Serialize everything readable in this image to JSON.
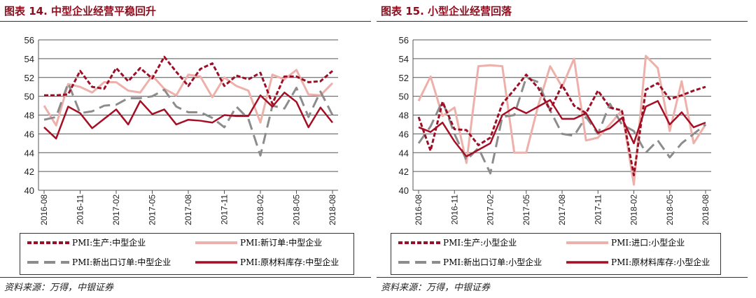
{
  "chart_data": [
    {
      "type": "line",
      "title": "图表 14. 中型企业经营平稳回升",
      "ylim": [
        40,
        56
      ],
      "yticks": [
        40,
        42,
        44,
        46,
        48,
        50,
        52,
        54,
        56
      ],
      "x": [
        "2016-08",
        "2016-09",
        "2016-10",
        "2016-11",
        "2016-12",
        "2017-01",
        "2017-02",
        "2017-03",
        "2017-04",
        "2017-05",
        "2017-06",
        "2017-07",
        "2017-08",
        "2017-09",
        "2017-10",
        "2017-11",
        "2017-12",
        "2018-01",
        "2018-02",
        "2018-03",
        "2018-04",
        "2018-05",
        "2018-06",
        "2018-07",
        "2018-08"
      ],
      "xticks": [
        "2016-08",
        "2016-11",
        "2017-02",
        "2017-05",
        "2017-08",
        "2017-11",
        "2018-02",
        "2018-05",
        "2018-08"
      ],
      "grid": true,
      "series": [
        {
          "name": "PMI:生产:中型企业",
          "style": "dotted",
          "color": "#9b1027",
          "values": [
            50.1,
            50.1,
            50.2,
            52.7,
            51.0,
            50.8,
            53.0,
            51.6,
            53.0,
            51.9,
            54.2,
            52.6,
            51.1,
            52.9,
            53.5,
            51.1,
            52.2,
            51.8,
            52.5,
            49.2,
            52.1,
            52.1,
            51.5,
            51.6,
            52.7
          ]
        },
        {
          "name": "PMI:新订单:中型企业",
          "style": "solid-light",
          "color": "#eeb0aa",
          "values": [
            49.0,
            46.9,
            51.3,
            51.0,
            50.4,
            51.5,
            51.5,
            50.6,
            50.4,
            52.2,
            50.8,
            50.1,
            52.3,
            52.1,
            49.9,
            52.0,
            51.1,
            50.6,
            47.2,
            52.3,
            51.8,
            52.8,
            50.2,
            50.1,
            51.4
          ]
        },
        {
          "name": "PMI:新出口订单:中型企业",
          "style": "dashed",
          "color": "#8c8c8c",
          "values": [
            47.5,
            47.8,
            51.4,
            48.2,
            48.4,
            49.0,
            49.1,
            49.8,
            49.8,
            50.0,
            50.7,
            48.9,
            48.3,
            48.3,
            47.7,
            46.7,
            48.9,
            47.6,
            43.7,
            49.0,
            48.7,
            50.9,
            47.8,
            50.5,
            48.0
          ]
        },
        {
          "name": "PMI:原材料库存:中型企业",
          "style": "solid",
          "color": "#a50e24",
          "values": [
            46.7,
            45.5,
            48.9,
            48.2,
            46.6,
            47.6,
            48.6,
            47.0,
            49.5,
            48.1,
            48.6,
            47.0,
            47.5,
            47.4,
            47.2,
            48.0,
            47.9,
            47.9,
            50.1,
            48.9,
            50.4,
            49.4,
            46.7,
            48.8,
            47.2
          ]
        }
      ],
      "source": "资料来源：万得，中银证券"
    },
    {
      "type": "line",
      "title": "图表 15. 小型企业经营回落",
      "ylim": [
        40,
        56
      ],
      "yticks": [
        40,
        42,
        44,
        46,
        48,
        50,
        52,
        54,
        56
      ],
      "x": [
        "2016-08",
        "2016-09",
        "2016-10",
        "2016-11",
        "2016-12",
        "2017-01",
        "2017-02",
        "2017-03",
        "2017-04",
        "2017-05",
        "2017-06",
        "2017-07",
        "2017-08",
        "2017-09",
        "2017-10",
        "2017-11",
        "2017-12",
        "2018-01",
        "2018-02",
        "2018-03",
        "2018-04",
        "2018-05",
        "2018-06",
        "2018-07",
        "2018-08"
      ],
      "xticks": [
        "2016-08",
        "2016-11",
        "2017-02",
        "2017-05",
        "2017-08",
        "2017-11",
        "2018-02",
        "2018-05",
        "2018-08"
      ],
      "grid": true,
      "series": [
        {
          "name": "PMI:生产:小型企业",
          "style": "dotted",
          "color": "#9b1027",
          "values": [
            47.8,
            44.2,
            49.4,
            46.5,
            46.4,
            44.8,
            45.6,
            49.2,
            50.7,
            52.3,
            50.9,
            48.5,
            51.2,
            49.0,
            48.2,
            50.6,
            48.8,
            48.5,
            41.6,
            50.7,
            51.4,
            49.7,
            50.1,
            50.6,
            51.0
          ]
        },
        {
          "name": "PMI:进口:小型企业",
          "style": "solid-light",
          "color": "#eeb0aa",
          "values": [
            49.5,
            52.1,
            47.9,
            48.8,
            42.9,
            53.2,
            53.3,
            53.2,
            44.0,
            44.0,
            49.0,
            53.2,
            51.0,
            54.0,
            45.3,
            45.6,
            47.0,
            48.5,
            40.6,
            54.3,
            53.0,
            46.3,
            51.6,
            45.0,
            47.0
          ]
        },
        {
          "name": "PMI:新出口订单:小型企业",
          "style": "dashed",
          "color": "#8c8c8c",
          "values": [
            45.0,
            46.8,
            49.5,
            46.0,
            43.2,
            44.5,
            41.8,
            47.8,
            48.0,
            52.0,
            51.5,
            48.5,
            46.0,
            45.8,
            47.8,
            46.0,
            49.2,
            47.0,
            46.3,
            44.0,
            45.3,
            43.5,
            45.0,
            46.0,
            47.0
          ]
        },
        {
          "name": "PMI:原材料库存:小型企业",
          "style": "solid",
          "color": "#a50e24",
          "values": [
            46.7,
            46.2,
            47.2,
            45.2,
            43.6,
            44.3,
            45.0,
            48.0,
            48.8,
            48.2,
            48.9,
            49.6,
            47.6,
            47.6,
            48.2,
            46.1,
            46.6,
            47.7,
            45.0,
            48.9,
            49.5,
            47.0,
            48.3,
            46.7,
            47.2
          ]
        }
      ],
      "source": "资料来源：万得，中银证券"
    }
  ]
}
